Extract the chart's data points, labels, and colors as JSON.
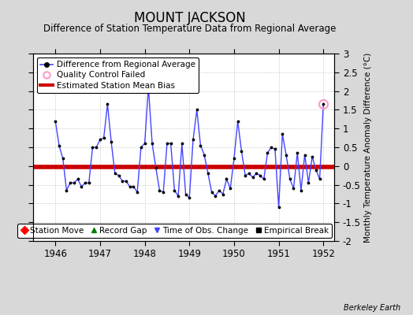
{
  "title": "MOUNT JACKSON",
  "subtitle": "Difference of Station Temperature Data from Regional Average",
  "ylabel": "Monthly Temperature Anomaly Difference (°C)",
  "xlabel_years": [
    1946,
    1947,
    1948,
    1949,
    1950,
    1951,
    1952
  ],
  "bias_value": -0.03,
  "ylim": [
    -2.0,
    3.0
  ],
  "xlim_start": 1945.5,
  "xlim_end": 1952.25,
  "bg_color": "#d8d8d8",
  "plot_bg_color": "#ffffff",
  "line_color": "#4444ff",
  "bias_color": "#cc0000",
  "qc_fail_color": "#ff99cc",
  "title_fontsize": 12,
  "subtitle_fontsize": 8.5,
  "ylabel_fontsize": 7.5,
  "tick_fontsize": 8.5,
  "legend_fontsize": 7.5,
  "watermark": "Berkeley Earth",
  "monthly_data": [
    [
      1946.0,
      1.2
    ],
    [
      1946.083,
      0.55
    ],
    [
      1946.167,
      0.2
    ],
    [
      1946.25,
      -0.65
    ],
    [
      1946.333,
      -0.45
    ],
    [
      1946.417,
      -0.45
    ],
    [
      1946.5,
      -0.35
    ],
    [
      1946.583,
      -0.55
    ],
    [
      1946.667,
      -0.45
    ],
    [
      1946.75,
      -0.45
    ],
    [
      1946.833,
      0.5
    ],
    [
      1946.917,
      0.5
    ],
    [
      1947.0,
      0.7
    ],
    [
      1947.083,
      0.75
    ],
    [
      1947.167,
      1.65
    ],
    [
      1947.25,
      0.65
    ],
    [
      1947.333,
      -0.2
    ],
    [
      1947.417,
      -0.25
    ],
    [
      1947.5,
      -0.4
    ],
    [
      1947.583,
      -0.4
    ],
    [
      1947.667,
      -0.55
    ],
    [
      1947.75,
      -0.55
    ],
    [
      1947.833,
      -0.7
    ],
    [
      1947.917,
      0.5
    ],
    [
      1948.0,
      0.6
    ],
    [
      1948.083,
      2.1
    ],
    [
      1948.167,
      0.6
    ],
    [
      1948.25,
      -0.05
    ],
    [
      1948.333,
      -0.65
    ],
    [
      1948.417,
      -0.7
    ],
    [
      1948.5,
      0.6
    ],
    [
      1948.583,
      0.6
    ],
    [
      1948.667,
      -0.65
    ],
    [
      1948.75,
      -0.8
    ],
    [
      1948.833,
      0.6
    ],
    [
      1948.917,
      -0.75
    ],
    [
      1949.0,
      -0.85
    ],
    [
      1949.083,
      0.7
    ],
    [
      1949.167,
      1.5
    ],
    [
      1949.25,
      0.55
    ],
    [
      1949.333,
      0.3
    ],
    [
      1949.417,
      -0.2
    ],
    [
      1949.5,
      -0.7
    ],
    [
      1949.583,
      -0.8
    ],
    [
      1949.667,
      -0.65
    ],
    [
      1949.75,
      -0.75
    ],
    [
      1949.833,
      -0.35
    ],
    [
      1949.917,
      -0.6
    ],
    [
      1950.0,
      0.2
    ],
    [
      1950.083,
      1.2
    ],
    [
      1950.167,
      0.4
    ],
    [
      1950.25,
      -0.25
    ],
    [
      1950.333,
      -0.2
    ],
    [
      1950.417,
      -0.3
    ],
    [
      1950.5,
      -0.2
    ],
    [
      1950.583,
      -0.25
    ],
    [
      1950.667,
      -0.35
    ],
    [
      1950.75,
      0.35
    ],
    [
      1950.833,
      0.5
    ],
    [
      1950.917,
      0.45
    ],
    [
      1951.0,
      -1.1
    ],
    [
      1951.083,
      0.85
    ],
    [
      1951.167,
      0.3
    ],
    [
      1951.25,
      -0.35
    ],
    [
      1951.333,
      -0.6
    ],
    [
      1951.417,
      0.35
    ],
    [
      1951.5,
      -0.65
    ],
    [
      1951.583,
      0.3
    ],
    [
      1951.667,
      -0.45
    ],
    [
      1951.75,
      0.25
    ],
    [
      1951.833,
      -0.1
    ],
    [
      1951.917,
      -0.35
    ],
    [
      1952.0,
      1.65
    ]
  ],
  "qc_fail_points": [
    [
      1952.0,
      1.65
    ]
  ],
  "time_of_obs_change": [
    [
      1948.083,
      2.1
    ]
  ]
}
